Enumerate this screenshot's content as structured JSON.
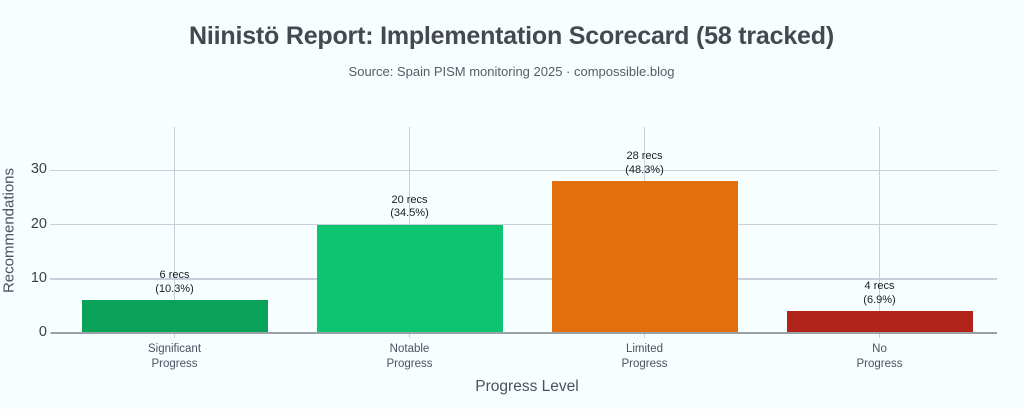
{
  "page": {
    "background_color": "#f6feff"
  },
  "chart_data": {
    "type": "bar",
    "title": "Niinistö Report: Implementation Scorecard (58 tracked)",
    "subtitle": "Source: Spain PISM monitoring 2025 · compossible.blog",
    "xlabel": "Progress Level",
    "ylabel": "Recommendations",
    "total_tracked": 58,
    "ylim": [
      0,
      38
    ],
    "yticks": [
      0,
      10,
      20,
      30
    ],
    "grid": true,
    "legend": "none",
    "categories": [
      "Significant Progress",
      "Notable Progress",
      "Limited Progress",
      "No Progress"
    ],
    "category_lines": [
      [
        "Significant",
        "Progress"
      ],
      [
        "Notable",
        "Progress"
      ],
      [
        "Limited",
        "Progress"
      ],
      [
        "No",
        "Progress"
      ]
    ],
    "values": [
      6,
      20,
      28,
      4
    ],
    "percentages": [
      10.3,
      34.5,
      48.3,
      6.9
    ],
    "value_labels": [
      "6 recs",
      "20 recs",
      "28 recs",
      "4 recs"
    ],
    "pct_labels": [
      "(10.3%)",
      "(34.5%)",
      "(48.3%)",
      "(6.9%)"
    ],
    "colors": [
      "#0aa158",
      "#0dc470",
      "#e2710d",
      "#b2231a"
    ],
    "gridline_color": "#caceda",
    "axis_line_color": "#9aa0a8"
  }
}
